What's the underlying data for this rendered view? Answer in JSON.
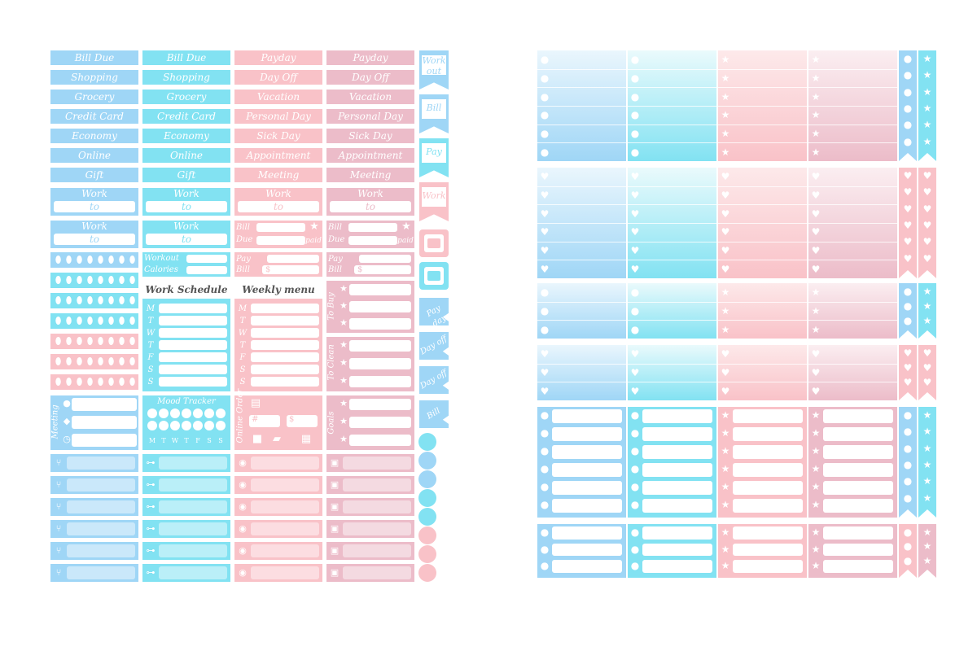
{
  "colors": {
    "blue": "#9fd6f6",
    "cyan": "#82e2f2",
    "pink": "#f9c2c8",
    "mauve": "#ecbcc9",
    "white": "#ffffff"
  },
  "left_sheet": {
    "col_blue_labels": [
      "Bill Due",
      "Shopping",
      "Grocery",
      "Credit Card",
      "Economy",
      "Online",
      "Gift"
    ],
    "col_cyan_labels": [
      "Bill Due",
      "Shopping",
      "Grocery",
      "Credit Card",
      "Economy",
      "Online",
      "Gift"
    ],
    "col_pink_labels": [
      "Payday",
      "Day Off",
      "Vacation",
      "Personal Day",
      "Sick Day",
      "Appointment",
      "Meeting"
    ],
    "col_mauve_labels": [
      "Payday",
      "Day Off",
      "Vacation",
      "Personal Day",
      "Sick Day",
      "Appointment",
      "Meeting"
    ],
    "work_to": {
      "title": "Work",
      "to": "to"
    },
    "bill_due": {
      "line1": "Bill",
      "line2": "Due",
      "paid": "paid"
    },
    "pay_bill": {
      "title": "Pay Bill",
      "currency": "$"
    },
    "workout": {
      "line1": "Workout",
      "line2": "Calories"
    },
    "work_schedule": {
      "title": "Work Schedule",
      "days": [
        "M",
        "T",
        "W",
        "T",
        "F",
        "S",
        "S"
      ]
    },
    "weekly_menu": {
      "title": "Weekly menu",
      "days": [
        "M",
        "T",
        "W",
        "T",
        "F",
        "S",
        "S"
      ]
    },
    "to_buy": "To Buy",
    "to_clean": "To Clean",
    "meeting": "Meeting",
    "mood_tracker": {
      "title": "Mood Tracker",
      "days": [
        "M",
        "T",
        "W",
        "T",
        "F",
        "S",
        "S"
      ]
    },
    "online_order": {
      "title": "Online Order",
      "hash": "#",
      "currency": "$"
    },
    "goals": "Goals",
    "flags": [
      "Work out",
      "Bill",
      "Pay",
      "Work"
    ],
    "side_tabs": [
      "Pay day",
      "Day off",
      "Day off",
      "Bill"
    ],
    "icons": {
      "drop": "drop-icon",
      "dumbbell": "dumbbell-icon",
      "utensils": "utensils-icon",
      "tooth": "tooth-icon",
      "stethoscope": "stethoscope-icon",
      "car": "car-icon",
      "cart": "cart-icon",
      "gift": "gift-icon",
      "heart": "heart-icon",
      "star": "star-icon",
      "circle": "circle-icon"
    }
  }
}
